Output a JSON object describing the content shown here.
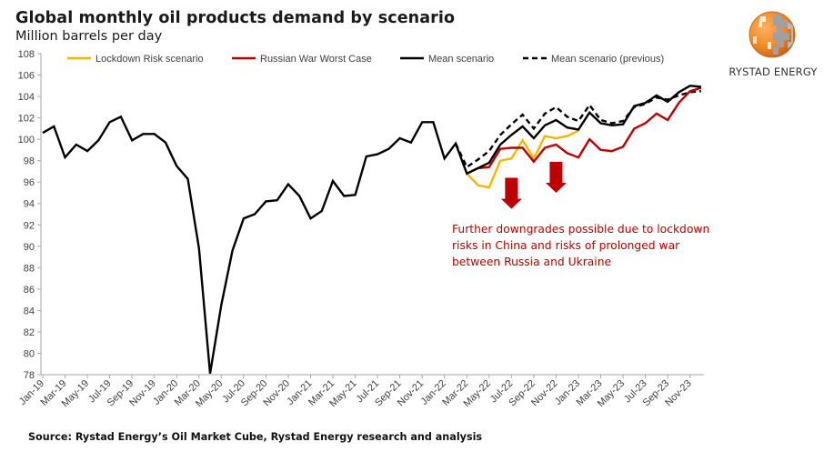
{
  "header": {
    "title": "Global monthly oil products demand by scenario",
    "subtitle": "Million barrels per day"
  },
  "logo": {
    "text": "RYSTAD ENERGY",
    "colors": {
      "orange": "#F08A24",
      "grey": "#9A9A9A"
    }
  },
  "annotation": {
    "lines": [
      "Further downgrades possible due to lockdown",
      "risks in China and risks of prolonged war",
      "between Russia and Ukraine"
    ],
    "color": "#C00000",
    "arrows": [
      {
        "month": "Jul-22",
        "level_top": 96.4,
        "level_tip": 93.5
      },
      {
        "month": "Nov-22",
        "level_top": 97.9,
        "level_tip": 95.0
      }
    ]
  },
  "footer": {
    "source": "Source: Rystad Energy’s Oil Market Cube, Rystad Energy research and analysis"
  },
  "chart_data": {
    "type": "line",
    "title": "Global monthly oil products demand by scenario",
    "subtitle": "Million barrels per day",
    "xlabel": "",
    "ylabel": "Million barrels per day",
    "ylim": [
      78,
      108
    ],
    "yticks": [
      78,
      80,
      82,
      84,
      86,
      88,
      90,
      92,
      94,
      96,
      98,
      100,
      102,
      104,
      106,
      108
    ],
    "grid": false,
    "legend_position": "top",
    "x_start": "Jan-19",
    "x_count": 60,
    "xtick_labels": [
      "Jan-19",
      "Mar-19",
      "May-19",
      "Jul-19",
      "Sep-19",
      "Nov-19",
      "Jan-20",
      "Mar-20",
      "May-20",
      "Jul-20",
      "Sep-20",
      "Nov-20",
      "Jan-21",
      "Mar-21",
      "May-21",
      "Jul-21",
      "Sep-21",
      "Nov-21",
      "Jan-22",
      "Mar-22",
      "May-22",
      "Jul-22",
      "Sep-22",
      "Nov-22",
      "Jan-23",
      "Mar-23",
      "May-23",
      "Jul-23",
      "Sep-23",
      "Nov-23"
    ],
    "series": [
      {
        "name": "Mean scenario (previous)",
        "color": "#000000",
        "dashed": true,
        "start_index": 37,
        "values": [
          99.6,
          97.4,
          98.1,
          98.9,
          100.4,
          101.4,
          102.3,
          101.0,
          102.4,
          103.0,
          102.1,
          101.7,
          103.2,
          101.8,
          101.5,
          101.7,
          103.0,
          103.3,
          103.9,
          103.7,
          104.1,
          104.4,
          104.5
        ]
      },
      {
        "name": "Lockdown Risk scenario",
        "color": "#F5B800",
        "dashed": false,
        "start_index": 38,
        "values": [
          96.8,
          95.7,
          95.5,
          98.0,
          98.2,
          99.9,
          98.2,
          100.3,
          100.1,
          100.3,
          100.8
        ]
      },
      {
        "name": "Russian War Worst Case",
        "color": "#C00000",
        "dashed": false,
        "start_index": 38,
        "values": [
          96.8,
          97.3,
          97.4,
          99.1,
          99.2,
          99.2,
          97.9,
          99.2,
          99.5,
          98.7,
          98.3,
          100.0,
          99.0,
          98.9,
          99.3,
          101.0,
          101.5,
          102.4,
          101.8,
          103.4,
          104.5,
          104.8
        ]
      },
      {
        "name": "Mean scenario",
        "color": "#000000",
        "dashed": false,
        "start_index": 0,
        "values": [
          100.6,
          101.2,
          98.3,
          99.5,
          98.9,
          99.9,
          101.6,
          102.1,
          99.9,
          100.5,
          100.5,
          99.7,
          97.5,
          96.3,
          89.8,
          78.1,
          84.5,
          89.6,
          92.6,
          93.0,
          94.2,
          94.3,
          95.8,
          94.7,
          92.6,
          93.3,
          96.1,
          94.7,
          94.8,
          98.4,
          98.6,
          99.1,
          100.1,
          99.7,
          101.6,
          101.6,
          98.2,
          99.6,
          96.8,
          97.3,
          97.8,
          99.5,
          100.4,
          101.2,
          100.1,
          101.3,
          101.8,
          101.1,
          100.9,
          102.5,
          101.5,
          101.3,
          101.4,
          103.1,
          103.4,
          104.1,
          103.5,
          104.4,
          105.0,
          104.9
        ]
      }
    ],
    "legend": [
      {
        "label": "Lockdown Risk scenario",
        "color": "#F5B800",
        "dashed": false
      },
      {
        "label": "Russian War Worst Case",
        "color": "#C00000",
        "dashed": false
      },
      {
        "label": "Mean scenario",
        "color": "#000000",
        "dashed": false
      },
      {
        "label": "Mean scenario (previous)",
        "color": "#000000",
        "dashed": true
      }
    ]
  }
}
